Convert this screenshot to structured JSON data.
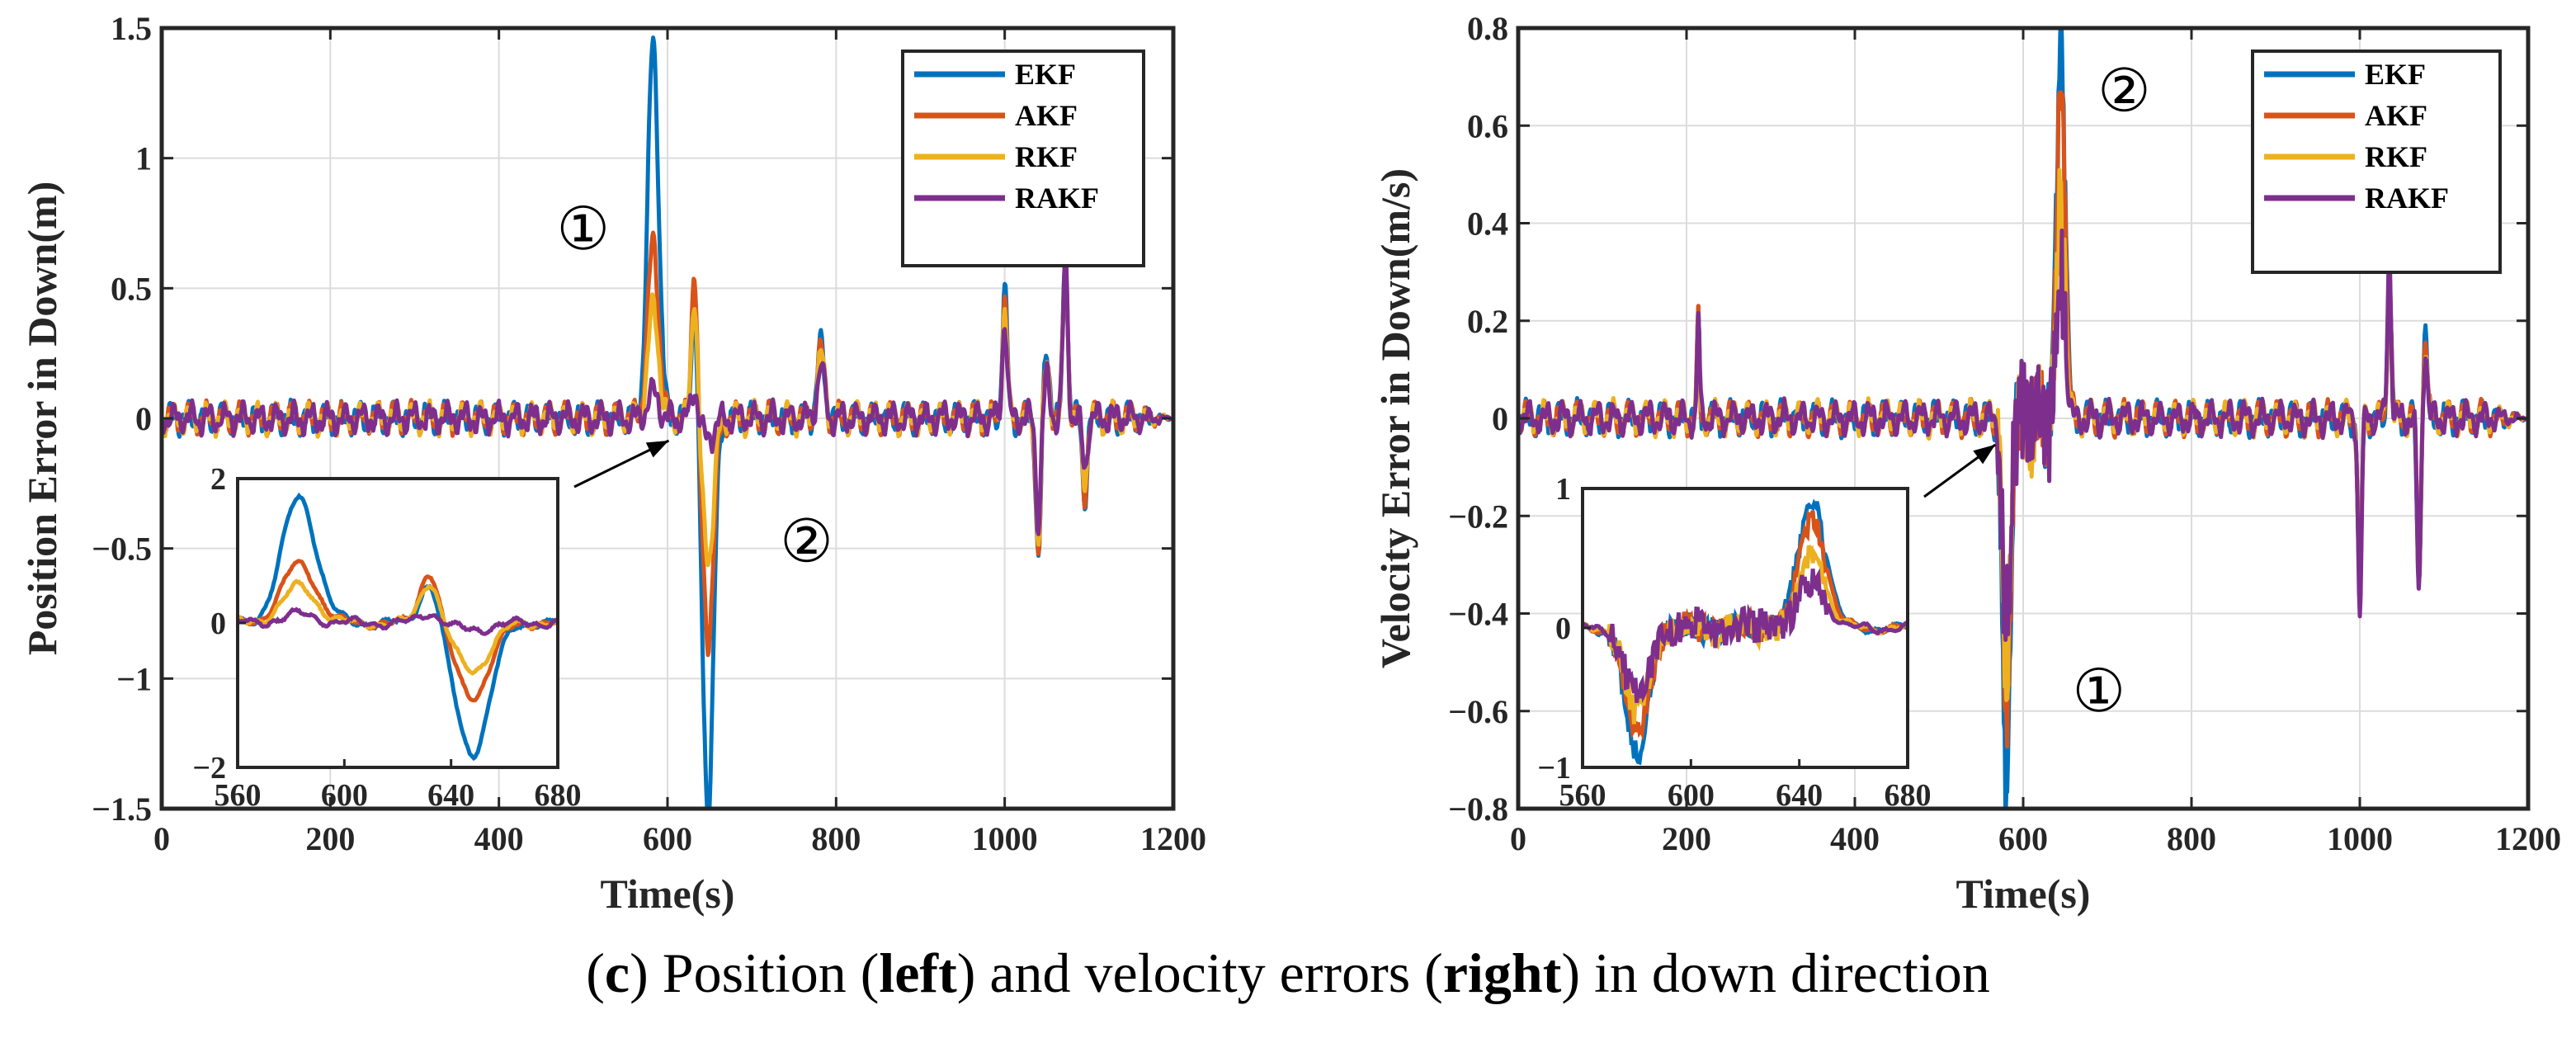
{
  "caption": {
    "part1": "(",
    "letter": "c",
    "part2": ") Position (",
    "left_word": "left",
    "part3": ") and velocity errors (",
    "right_word": "right",
    "part4": ") in down direction"
  },
  "colors": {
    "EKF": "#0072BD",
    "AKF": "#D95319",
    "RKF": "#EDB120",
    "RAKF": "#7E2F8E"
  },
  "chart_data": [
    {
      "type": "line",
      "title": "",
      "xlabel": "Time(s)",
      "ylabel": "Position Error in Down(m)",
      "xlim": [
        0,
        1200
      ],
      "ylim": [
        -1.5,
        1.5
      ],
      "xticks": [
        0,
        200,
        400,
        600,
        800,
        1000,
        1200
      ],
      "xtick_labels": [
        "0",
        "200",
        "400",
        "600",
        "800",
        "1000",
        "1200"
      ],
      "yticks": [
        -1.5,
        -1,
        -0.5,
        0,
        0.5,
        1,
        1.5
      ],
      "ytick_labels": [
        "-1.5",
        "-1",
        "-0.5",
        "0",
        "0.5",
        "1",
        "1.5"
      ],
      "grid": true,
      "legend": "top-right",
      "legend_entries": [
        "EKF",
        "AKF",
        "RKF",
        "RAKF"
      ],
      "annotations": [
        {
          "text": "①",
          "x": 500,
          "y": 0.65
        },
        {
          "text": "②",
          "x": 765,
          "y": -0.55
        }
      ],
      "events": [
        {
          "t": 583,
          "width": 9,
          "peaks": {
            "EKF": 1.45,
            "AKF": 0.68,
            "RKF": 0.42,
            "RAKF": 0.1
          }
        },
        {
          "t": 632,
          "width": 5,
          "peaks": {
            "EKF": 0.5,
            "AKF": 0.62,
            "RKF": 0.5,
            "RAKF": 0.12
          }
        },
        {
          "t": 648,
          "width": 9,
          "peaks": {
            "EKF": -1.5,
            "AKF": -0.85,
            "RKF": -0.55,
            "RAKF": -0.08
          }
        },
        {
          "t": 782,
          "width": 6,
          "peaks": {
            "EKF": 0.28,
            "AKF": 0.26,
            "RKF": 0.24,
            "RAKF": 0.2
          }
        },
        {
          "t": 1000,
          "width": 4,
          "peaks": {
            "EKF": 0.5,
            "AKF": 0.46,
            "RKF": 0.42,
            "RAKF": 0.38
          }
        },
        {
          "t": 1040,
          "width": 4,
          "peaks": {
            "EKF": -0.55,
            "AKF": -0.5,
            "RKF": -0.45,
            "RAKF": -0.4
          }
        },
        {
          "t": 1050,
          "width": 5,
          "peaks": {
            "EKF": 0.25,
            "AKF": 0.2,
            "RKF": 0.18,
            "RAKF": 0.15
          }
        },
        {
          "t": 1072,
          "width": 4,
          "peaks": {
            "EKF": 0.62,
            "AKF": 0.6,
            "RKF": 0.58,
            "RAKF": 0.6
          }
        },
        {
          "t": 1095,
          "width": 4,
          "peaks": {
            "EKF": -0.3,
            "AKF": -0.28,
            "RKF": -0.25,
            "RAKF": -0.2
          }
        }
      ],
      "noise_amp": 0.07,
      "inset": {
        "xlim": [
          560,
          680
        ],
        "ylim": [
          -2,
          2
        ],
        "xticks": [
          560,
          600,
          640,
          680
        ],
        "xtick_labels": [
          "560",
          "600",
          "640",
          "680"
        ],
        "yticks": [
          -2,
          0,
          2
        ],
        "ytick_labels": [
          "−2",
          "0",
          "2"
        ],
        "arrow_target": [
          605,
          -0.08
        ]
      }
    },
    {
      "type": "line",
      "title": "",
      "xlabel": "Time(s)",
      "ylabel": "Velocity Error in Down(m/s)",
      "xlim": [
        0,
        1200
      ],
      "ylim": [
        -0.8,
        0.8
      ],
      "xticks": [
        0,
        200,
        400,
        600,
        800,
        1000,
        1200
      ],
      "xtick_labels": [
        "0",
        "200",
        "400",
        "600",
        "800",
        "1000",
        "1200"
      ],
      "yticks": [
        -0.8,
        -0.6,
        -0.4,
        -0.2,
        0,
        0.2,
        0.4,
        0.6,
        0.8
      ],
      "ytick_labels": [
        "-0.8",
        "-0.6",
        "-0.4",
        "-0.2",
        "0",
        "0.2",
        "0.4",
        "0.6",
        "0.8"
      ],
      "grid": true,
      "legend": "top-right",
      "legend_entries": [
        "EKF",
        "AKF",
        "RKF",
        "RAKF"
      ],
      "annotations": [
        {
          "text": "②",
          "x": 720,
          "y": 0.63
        },
        {
          "text": "①",
          "x": 690,
          "y": -0.6
        }
      ],
      "events": [
        {
          "t": 214,
          "width": 2,
          "peaks": {
            "EKF": 0.2,
            "AKF": 0.2,
            "RKF": 0.2,
            "RAKF": 0.21
          }
        },
        {
          "t": 580,
          "width": 6,
          "peaks": {
            "EKF": -0.8,
            "AKF": -0.68,
            "RKF": -0.55,
            "RAKF": -0.45
          }
        },
        {
          "t": 645,
          "width": 7,
          "peaks": {
            "EKF": 0.8,
            "AKF": 0.7,
            "RKF": 0.44,
            "RAKF": 0.3
          }
        },
        {
          "t": 1000,
          "width": 3,
          "peaks": {
            "EKF": -0.38,
            "AKF": -0.36,
            "RKF": -0.34,
            "RAKF": -0.39
          }
        },
        {
          "t": 1035,
          "width": 3,
          "peaks": {
            "EKF": 0.33,
            "AKF": 0.32,
            "RKF": 0.3,
            "RAKF": 0.35
          }
        },
        {
          "t": 1070,
          "width": 3,
          "peaks": {
            "EKF": -0.34,
            "AKF": -0.33,
            "RKF": -0.32,
            "RAKF": -0.35
          }
        },
        {
          "t": 1078,
          "width": 3,
          "peaks": {
            "EKF": 0.18,
            "AKF": 0.17,
            "RKF": 0.16,
            "RAKF": 0.15
          }
        }
      ],
      "noise_amp": 0.04,
      "burst": {
        "t0": 570,
        "t1": 650,
        "amp": 0.12
      },
      "inset": {
        "xlim": [
          560,
          680
        ],
        "ylim": [
          -1,
          1
        ],
        "xticks": [
          560,
          600,
          640,
          680
        ],
        "xtick_labels": [
          "560",
          "600",
          "640",
          "680"
        ],
        "yticks": [
          -1,
          0,
          1
        ],
        "ytick_labels": [
          "−1",
          "0",
          "1"
        ],
        "arrow_target": [
          570,
          -0.05
        ]
      }
    }
  ]
}
